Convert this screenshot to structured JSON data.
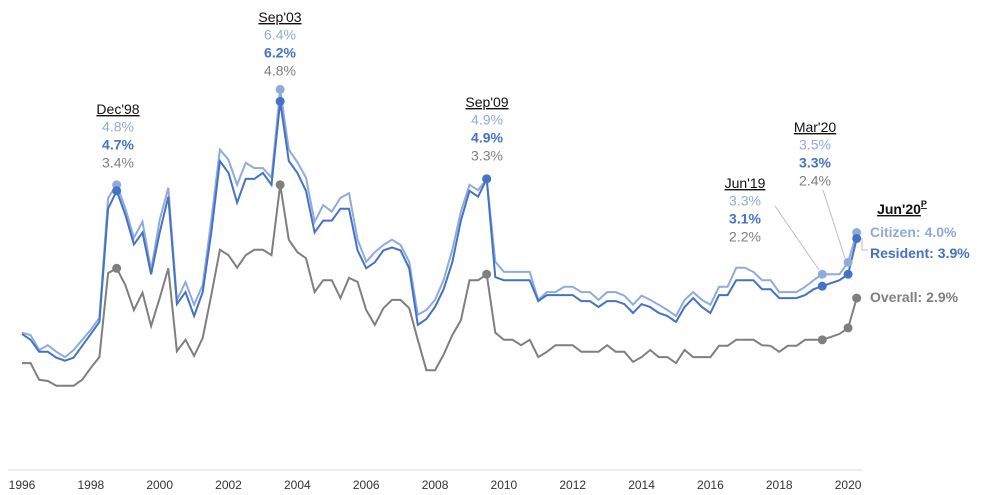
{
  "chart_data": {
    "type": "line",
    "x": [
      1996,
      1996.25,
      1996.5,
      1996.75,
      1997,
      1997.25,
      1997.5,
      1997.75,
      1998,
      1998.25,
      1998.5,
      1998.75,
      1999,
      1999.25,
      1999.5,
      1999.75,
      2000,
      2000.25,
      2000.5,
      2000.75,
      2001,
      2001.25,
      2001.5,
      2001.75,
      2002,
      2002.25,
      2002.5,
      2002.75,
      2003,
      2003.25,
      2003.5,
      2003.75,
      2004,
      2004.25,
      2004.5,
      2004.75,
      2005,
      2005.25,
      2005.5,
      2005.75,
      2006,
      2006.25,
      2006.5,
      2006.75,
      2007,
      2007.25,
      2007.5,
      2007.75,
      2008,
      2008.25,
      2008.5,
      2008.75,
      2009,
      2009.25,
      2009.5,
      2009.75,
      2010,
      2010.25,
      2010.5,
      2010.75,
      2011,
      2011.25,
      2011.5,
      2011.75,
      2012,
      2012.25,
      2012.5,
      2012.75,
      2013,
      2013.25,
      2013.5,
      2013.75,
      2014,
      2014.25,
      2014.5,
      2014.75,
      2015,
      2015.25,
      2015.5,
      2015.75,
      2016,
      2016.25,
      2016.5,
      2016.75,
      2017,
      2017.25,
      2017.5,
      2017.75,
      2018,
      2018.25,
      2018.5,
      2018.75,
      2019,
      2019.25,
      2019.5,
      2019.75,
      2020,
      2020.25
    ],
    "xlim": [
      1996,
      2020.25
    ],
    "xticks": [
      1996,
      1998,
      2000,
      2002,
      2004,
      2006,
      2008,
      2010,
      2012,
      2014,
      2016,
      2018,
      2020
    ],
    "ylim": [
      0,
      7.9
    ],
    "series": [
      {
        "name": "Citizen:",
        "color": "#8faadc",
        "values": [
          2.32,
          2.28,
          2.03,
          2.11,
          2.0,
          1.91,
          2.03,
          2.2,
          2.37,
          2.57,
          4.58,
          4.8,
          4.41,
          3.91,
          4.18,
          3.37,
          4.21,
          4.75,
          2.87,
          3.17,
          2.79,
          3.12,
          4.21,
          5.39,
          5.22,
          4.8,
          5.17,
          5.08,
          5.08,
          4.92,
          6.4,
          5.39,
          5.18,
          4.92,
          4.18,
          4.46,
          4.35,
          4.58,
          4.66,
          3.88,
          3.51,
          3.67,
          3.79,
          3.88,
          3.79,
          3.51,
          2.62,
          2.7,
          2.87,
          3.2,
          3.71,
          4.35,
          4.8,
          4.71,
          4.9,
          3.51,
          3.34,
          3.34,
          3.34,
          3.34,
          2.87,
          3.0,
          3.0,
          3.09,
          3.09,
          3.0,
          3.0,
          2.87,
          3.0,
          3.0,
          2.94,
          2.79,
          2.94,
          2.87,
          2.79,
          2.7,
          2.6,
          2.87,
          3.0,
          2.87,
          2.79,
          3.09,
          3.09,
          3.41,
          3.41,
          3.34,
          3.2,
          3.2,
          3.0,
          3.0,
          3.0,
          3.09,
          3.2,
          3.3,
          3.3,
          3.3,
          3.5,
          4.0
        ],
        "value_labels": {
          "11": "4.8%",
          "30": "6.4%",
          "54": "4.9%",
          "93": "3.3%",
          "96": "3.5%",
          "97": "4.0%"
        }
      },
      {
        "name": "Resident:",
        "color": "#4472c4",
        "values": [
          2.3,
          2.2,
          2.0,
          2.0,
          1.9,
          1.85,
          1.9,
          2.1,
          2.3,
          2.5,
          4.4,
          4.7,
          4.3,
          3.8,
          4.0,
          3.3,
          4.0,
          4.6,
          2.8,
          3.0,
          2.6,
          3.0,
          4.0,
          5.2,
          5.0,
          4.5,
          4.9,
          4.9,
          5.0,
          4.8,
          6.2,
          5.2,
          5.0,
          4.7,
          4.0,
          4.2,
          4.2,
          4.4,
          4.4,
          3.7,
          3.4,
          3.5,
          3.7,
          3.75,
          3.7,
          3.4,
          2.45,
          2.55,
          2.75,
          3.05,
          3.5,
          4.2,
          4.7,
          4.6,
          4.9,
          3.25,
          3.2,
          3.2,
          3.2,
          3.2,
          2.85,
          2.95,
          2.95,
          2.95,
          2.95,
          2.85,
          2.85,
          2.75,
          2.85,
          2.85,
          2.8,
          2.65,
          2.8,
          2.75,
          2.65,
          2.6,
          2.5,
          2.75,
          2.9,
          2.75,
          2.65,
          2.95,
          2.95,
          3.2,
          3.2,
          3.2,
          3.05,
          3.05,
          2.9,
          2.9,
          2.9,
          2.95,
          3.05,
          3.1,
          3.15,
          3.2,
          3.3,
          3.9
        ],
        "value_labels": {
          "11": "4.7%",
          "30": "6.2%",
          "54": "4.9%",
          "93": "3.1%",
          "96": "3.3%",
          "97": "3.9%"
        }
      },
      {
        "name": "Overall:",
        "color": "#7f7f7f",
        "values": [
          1.81,
          1.81,
          1.53,
          1.51,
          1.43,
          1.43,
          1.43,
          1.53,
          1.73,
          1.91,
          3.32,
          3.4,
          3.12,
          2.7,
          2.99,
          2.43,
          2.9,
          3.4,
          2.01,
          2.2,
          1.93,
          2.23,
          2.95,
          3.71,
          3.62,
          3.41,
          3.62,
          3.71,
          3.71,
          3.62,
          4.8,
          3.88,
          3.67,
          3.57,
          3.0,
          3.2,
          3.2,
          2.9,
          3.24,
          3.17,
          2.7,
          2.45,
          2.73,
          2.87,
          2.87,
          2.73,
          2.2,
          1.69,
          1.69,
          1.95,
          2.28,
          2.53,
          3.2,
          3.2,
          3.3,
          2.32,
          2.2,
          2.2,
          2.11,
          2.2,
          1.91,
          2.0,
          2.11,
          2.11,
          2.11,
          2.0,
          2.0,
          2.0,
          2.11,
          2.0,
          2.0,
          1.83,
          1.91,
          2.03,
          1.91,
          1.91,
          1.81,
          2.03,
          1.91,
          1.91,
          1.91,
          2.1,
          2.1,
          2.2,
          2.2,
          2.2,
          2.11,
          2.1,
          2.0,
          2.1,
          2.1,
          2.2,
          2.2,
          2.2,
          2.25,
          2.3,
          2.4,
          2.9
        ],
        "value_labels": {
          "11": "3.4%",
          "30": "4.8%",
          "54": "3.3%",
          "93": "2.2%",
          "96": "2.4%",
          "97": "2.9%"
        }
      }
    ],
    "annotations": [
      {
        "text": "Dec'98",
        "x": 1998.75
      },
      {
        "text": "Sep'03",
        "x": 2003.5
      },
      {
        "text": "Sep'09",
        "x": 2009.5
      },
      {
        "text": "Jun'19",
        "x": 2019.25
      },
      {
        "text": "Mar'20",
        "x": 2020
      },
      {
        "text": "Jun'20",
        "superscript": "P",
        "x": 2020.25
      }
    ]
  }
}
